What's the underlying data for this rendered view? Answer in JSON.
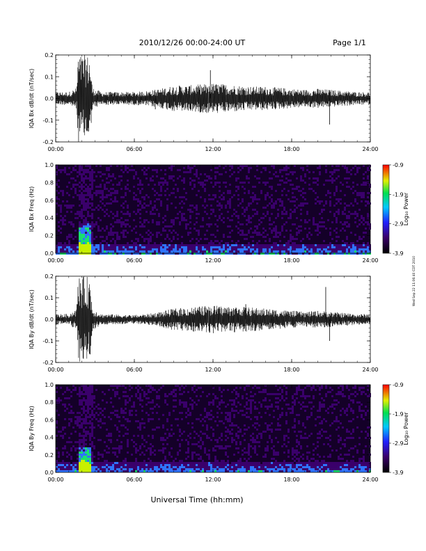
{
  "header": {
    "date_range": "2010/12/26  00:00-24:00 UT",
    "page": "Page 1/1"
  },
  "footer": {
    "xlabel": "Universal Time (hh:mm)",
    "stamp": "Wed Sep 22 11:06:40 CDT 2010"
  },
  "colors": {
    "trace": "#000000",
    "spec_background": "#140028",
    "spec_low": "#3a006b",
    "spec_mid": "#2f74ff",
    "spec_high": "#19e06e",
    "spec_peak": "#c8f000"
  },
  "chart_data": [
    {
      "type": "line",
      "ylabel": "IQA Bx dB/dt (nT/sec)",
      "x_ticks": [
        "00:00",
        "06:00",
        "12:00",
        "18:00",
        "24:00"
      ],
      "xlim": [
        0,
        24
      ],
      "ylim": [
        -0.2,
        0.2
      ],
      "y_ticks": [
        "0.2",
        "0.1",
        "0.0",
        "-0.1",
        "-0.2"
      ],
      "envelope": {
        "x_hours": [
          0,
          1,
          1.6,
          1.7,
          2.6,
          2.8,
          3.5,
          6,
          7,
          8,
          9,
          10,
          11,
          12,
          13,
          14,
          15,
          16,
          17,
          18,
          19,
          20,
          21,
          22,
          23,
          24
        ],
        "amplitude": [
          0.03,
          0.03,
          0.05,
          0.2,
          0.2,
          0.05,
          0.03,
          0.03,
          0.035,
          0.045,
          0.06,
          0.06,
          0.065,
          0.07,
          0.065,
          0.06,
          0.055,
          0.055,
          0.05,
          0.045,
          0.04,
          0.045,
          0.04,
          0.035,
          0.03,
          0.03
        ]
      },
      "spikes": [
        {
          "x": 11.8,
          "y": 0.13
        },
        {
          "x": 20.9,
          "y": -0.12
        },
        {
          "x": 7.6,
          "y": -0.05
        }
      ]
    },
    {
      "type": "heatmap",
      "ylabel": "IQA Bx Freq (Hz)",
      "x_ticks": [
        "00:00",
        "06:00",
        "12:00",
        "18:00",
        "24:00"
      ],
      "xlim": [
        0,
        24
      ],
      "ylim": [
        0,
        1.0
      ],
      "y_ticks": [
        "1.0",
        "0.8",
        "0.6",
        "0.4",
        "0.2",
        "0.0"
      ],
      "colorbar": {
        "label": "Log₁₀ Power",
        "ticks": [
          "-0.9",
          "-1.9",
          "-2.9",
          "-3.9"
        ],
        "range": [
          -3.9,
          -0.9
        ]
      },
      "burst": {
        "x_hours": [
          1.7,
          2.7
        ],
        "max_freq": 0.35
      },
      "band_top_hz": 0.12
    },
    {
      "type": "line",
      "ylabel": "IQA By dB/dt (nT/sec)",
      "x_ticks": [
        "00:00",
        "06:00",
        "12:00",
        "18:00",
        "24:00"
      ],
      "xlim": [
        0,
        24
      ],
      "ylim": [
        -0.2,
        0.2
      ],
      "y_ticks": [
        "0.2",
        "0.1",
        "0.0",
        "-0.1",
        "-0.2"
      ],
      "envelope": {
        "x_hours": [
          0,
          1,
          1.6,
          1.7,
          2.6,
          2.8,
          3.5,
          6,
          7,
          8,
          9,
          10,
          11,
          12,
          13,
          14,
          15,
          16,
          17,
          18,
          19,
          20,
          21,
          22,
          23,
          24
        ],
        "amplitude": [
          0.025,
          0.025,
          0.05,
          0.2,
          0.2,
          0.05,
          0.025,
          0.02,
          0.025,
          0.035,
          0.05,
          0.055,
          0.06,
          0.065,
          0.06,
          0.06,
          0.055,
          0.05,
          0.045,
          0.04,
          0.035,
          0.04,
          0.035,
          0.03,
          0.025,
          0.025
        ]
      },
      "spikes": [
        {
          "x": 20.6,
          "y": 0.15
        },
        {
          "x": 20.9,
          "y": -0.1
        },
        {
          "x": 14.5,
          "y": 0.07
        }
      ]
    },
    {
      "type": "heatmap",
      "ylabel": "IQA By Freq (Hz)",
      "x_ticks": [
        "00:00",
        "06:00",
        "12:00",
        "18:00",
        "24:00"
      ],
      "xlim": [
        0,
        24
      ],
      "ylim": [
        0,
        1.0
      ],
      "y_ticks": [
        "1.0",
        "0.8",
        "0.6",
        "0.4",
        "0.2",
        "0.0"
      ],
      "colorbar": {
        "label": "Log₁₀ Power",
        "ticks": [
          "-0.9",
          "-1.9",
          "-2.9",
          "-3.9"
        ],
        "range": [
          -3.9,
          -0.9
        ]
      },
      "burst": {
        "x_hours": [
          1.7,
          2.7
        ],
        "max_freq": 0.3
      },
      "band_top_hz": 0.12
    }
  ]
}
